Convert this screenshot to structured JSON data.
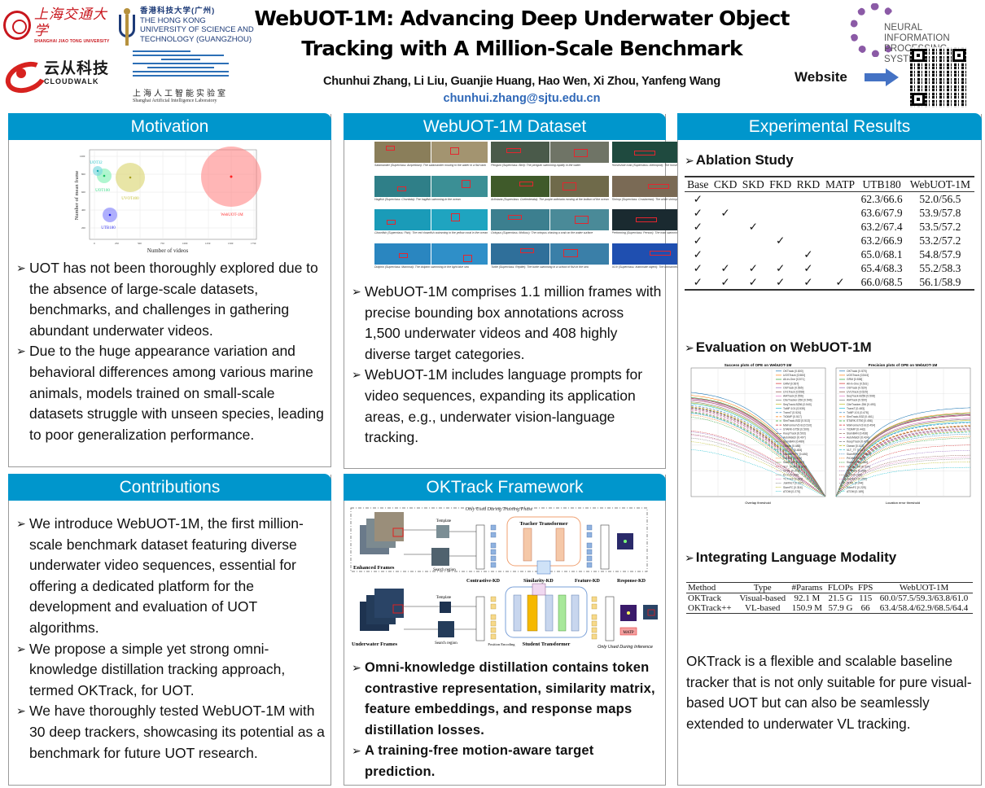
{
  "header": {
    "title_line1": "WebUOT-1M: Advancing Deep Underwater Object",
    "title_line2": "Tracking with A Million-Scale Benchmark",
    "authors": "Chunhui Zhang, Li Liu, Guanjie Huang, Hao Wen, Xi Zhou, Yanfeng Wang",
    "email": "chunhui.zhang@sjtu.edu.cn",
    "website_label": "Website",
    "logos": {
      "sjtu_cn": "上海交通大学",
      "sjtu_en": "SHANGHAI JIAO TONG UNIVERSITY",
      "hkust_cn": "香港科技大学(广州)",
      "hkust_en_1": "THE HONG KONG",
      "hkust_en_2": "UNIVERSITY OF SCIENCE AND",
      "hkust_en_3": "TECHNOLOGY (GUANGZHOU)",
      "cloudwalk_cn": "云从科技",
      "cloudwalk_en": "CLOUDWALK",
      "shlab_cn": "上海人工智能实验室",
      "shlab_en": "Shanghai Artificial Intelligence Laboratory",
      "neurips_1": "NEURAL INFORMATION",
      "neurips_2": "PROCESSING SYSTEMS"
    },
    "icons": {
      "arrow": "arrow-right-icon",
      "qr": "qr-code-icon"
    },
    "colors": {
      "arrow": "#4472c4",
      "email": "#2f68b8"
    }
  },
  "theme": {
    "panel_header_bg": "#0096cc",
    "panel_header_text": "#ffffff",
    "panel_border": "#9a9a9a"
  },
  "motivation": {
    "heading": "Motivation",
    "bullets": [
      "UOT has not been thoroughly explored due to the absence of large-scale datasets, benchmarks, and challenges in gathering abundant underwater videos.",
      "Due to the huge appearance variation and behavioral differences among various marine animals, models trained on small-scale datasets struggle with unseen species, leading to poor generalization performance."
    ]
  },
  "contributions": {
    "heading": "Contributions",
    "bullets": [
      "We introduce WebUOT-1M, the first million-scale benchmark dataset featuring diverse underwater video sequences, essential for offering a dedicated platform for the development and evaluation of UOT algorithms.",
      "We propose a simple yet strong omni-knowledge distillation tracking approach, termed OKTrack, for UOT.",
      "We have thoroughly tested WebUOT-1M with 30 deep trackers, showcasing its potential as a benchmark for future UOT research."
    ]
  },
  "dataset": {
    "heading": "WebUOT-1M Dataset",
    "samples": [
      {
        "caption": "Salamander (Superclass: Amphibian): The salamander moving in the water in a fish tank",
        "frames": [
          "#0001",
          "#2024"
        ],
        "tone": [
          "#8a7e5a",
          "#a39470"
        ]
      },
      {
        "caption": "Penguin (Superclass: Bird): The penguin swimming rapidly in the water",
        "frames": [
          "#0001",
          "#0176"
        ],
        "tone": [
          "#4a5a4a",
          "#6f7466"
        ]
      },
      {
        "caption": "Horseshoe crab (Superclass: Arthropod): The horseshoe crab moving in the water",
        "frames": [
          "#0080",
          "#0105"
        ],
        "tone": [
          "#1f4a3f",
          "#24564a"
        ]
      },
      {
        "caption": "Hagfish (Superclass: Chordata): The hagfish swimming in the ocean",
        "frames": [
          "#0001",
          "#0105"
        ],
        "tone": [
          "#2f7f88",
          "#3b8f95"
        ]
      },
      {
        "caption": "Actiniaria (Superclass: Coelenterata): The purple actiniaria moving at the bottom of the ocean",
        "frames": [
          "#0001",
          "#1120"
        ],
        "tone": [
          "#3f5a2a",
          "#6f6a4a"
        ]
      },
      {
        "caption": "Shrimp (Superclass: Crustacean): The white shrimp moving in the fish tank",
        "frames": [
          "#0001",
          "#0012"
        ],
        "tone": [
          "#7a6a55",
          "#8a7a65"
        ]
      },
      {
        "caption": "Clownfish (Superclass: Fish): The red clownfish swimming in the yellow coral in the ocean",
        "frames": [
          "#0121",
          "#0096"
        ],
        "tone": [
          "#1a9bb8",
          "#1fa4c0"
        ]
      },
      {
        "caption": "Octopus (Superclass: Mollusc): The octopus chasing a crab on the water surface",
        "frames": [
          "#0035",
          "#0149"
        ],
        "tone": [
          "#3c7f8f",
          "#4a8a98"
        ]
      },
      {
        "caption": "Performing (Superclass: Person): The man swimming in the water in a white and black mermaid costume",
        "frames": [
          "#0001",
          "#0353"
        ],
        "tone": [
          "#1a2a30",
          "#2a3a2a"
        ]
      },
      {
        "caption": "Dolphin (Superclass: Mammal): The dolphin swimming in the light blue sea",
        "frames": [
          "#0500",
          "#0611"
        ],
        "tone": [
          "#2a86c0",
          "#2f8fc8"
        ]
      },
      {
        "caption": "Turtle (Superclass: Reptile): The turtle swimming in a school of fish in the sea",
        "frames": [
          "#0001",
          "#0052"
        ],
        "tone": [
          "#2f6f9a",
          "#3a7fa8"
        ]
      },
      {
        "caption": "UUV (Superclass: Inanimate object): The unmanned underwater vehicle leaving the platform in the ocean",
        "frames": [
          "#0001",
          "#0116"
        ],
        "tone": [
          "#1f4fb0",
          "#2a5cc0"
        ]
      }
    ],
    "bullets": [
      "WebUOT-1M comprises 1.1 million frames with precise bounding box annotations across 1,500 underwater videos and 408 highly diverse target categories.",
      "WebUOT-1M includes language prompts for video sequences, expanding its application areas, e.g., underwater vision-language tracking."
    ]
  },
  "framework": {
    "heading": "OKTrack Framework",
    "diagram": {
      "training_only": "Only Used During Training Phase",
      "inference_only": "Only Used During Inference",
      "enhanced_frames": "Enhanced Frames",
      "underwater_frames": "Underwater Frames",
      "template": "Template",
      "search_region": "Search region",
      "projection_layer": "Projection Layer",
      "teacher": "Teacher Transformer",
      "student": "Student Transformer",
      "mha": "Multi-Head Attention",
      "layer_norm": "LayerNorm",
      "add_norm": "Add & Norm",
      "ffn": "FFN",
      "tracking_head": "Tracking Head",
      "position_encoding": "Position Encoding",
      "contrastive_kd": "Contrastive-KD",
      "similarity_kd": "Similarity-KD",
      "feature_kd": "Feature-KD",
      "response_kd": "Response-KD",
      "matp": "MATP",
      "time": "Time",
      "frame_first": "#1",
      "frame_last": "#N"
    },
    "bullets": [
      "Omni-knowledge distillation contains token contrastive  representation, similarity matrix, feature embeddings, and response maps distillation losses.",
      "A training-free motion-aware target prediction."
    ]
  },
  "results": {
    "heading": "Experimental Results",
    "ablation": {
      "heading": "Ablation Study",
      "columns": [
        "Base",
        "CKD",
        "SKD",
        "FKD",
        "RKD",
        "MATP",
        "UTB180",
        "WebUOT-1M"
      ],
      "check": "✓",
      "rows": [
        [
          true,
          false,
          false,
          false,
          false,
          false,
          "62.3/66.6",
          "52.0/56.5"
        ],
        [
          true,
          true,
          false,
          false,
          false,
          false,
          "63.6/67.9",
          "53.9/57.8"
        ],
        [
          true,
          false,
          true,
          false,
          false,
          false,
          "63.2/67.4",
          "53.5/57.2"
        ],
        [
          true,
          false,
          false,
          true,
          false,
          false,
          "63.2/66.9",
          "53.2/57.2"
        ],
        [
          true,
          false,
          false,
          false,
          true,
          false,
          "65.0/68.1",
          "54.8/57.9"
        ],
        [
          true,
          true,
          true,
          true,
          true,
          false,
          "65.4/68.3",
          "55.2/58.3"
        ],
        [
          true,
          true,
          true,
          true,
          true,
          true,
          "66.0/68.5",
          "56.1/58.9"
        ]
      ]
    },
    "evaluation": {
      "heading": "Evaluation on WebUOT-1M",
      "success_plot": {
        "title": "Success plots of OPE on WebUOT-1M",
        "xlabel": "Overlap threshold",
        "ylabel": "Success rate",
        "legend": [
          "OKTrack [0.600]",
          "UOSTrack [0.583]",
          "All-in-One [0.571]",
          "GRM [0.567]",
          "OSTrack [0.565]",
          "UVLTrack [0.558]",
          "AiATrack [0.556]",
          "CiteTracker-256 [0.546]",
          "SeqTrack-B256 [0.540]",
          "ToMP-101 [0.535]",
          "TransT [0.524]",
          "TrDiMP [0.517]",
          "SimTrack-B32 [0.513]",
          "MixFormerV2-B [0.510]",
          "STARK-ST50 [0.509]",
          "KeepTrack [0.503]",
          "AutoMatch [0.497]",
          "SiamBAN [0.489]",
          "Ocean [0.485]",
          "VLT_TT [0.483]",
          "SiamRPN++ [0.480]",
          "PrDiMP [0.470]",
          "SiamCAR [0.457]",
          "VLT_SCAR [0.378]",
          "VITAL [0.372]",
          "ECO [0.358]",
          "TCTrack [0.353]",
          "JointNLT [0.337]",
          "SiamFC [0.316]",
          "ATOM [0.270]"
        ]
      },
      "precision_plot": {
        "title": "Precision plots of OPE on WebUOT-1M",
        "xlabel": "Location error threshold",
        "ylabel": "Precision",
        "legend": [
          "OKTrack [0.575]",
          "UOSTrack [0.543]",
          "GRM [0.538]",
          "All-in-One [0.531]",
          "OSTrack [0.529]",
          "UVLTrack [0.525]",
          "SeqTrack-B256 [0.508]",
          "AiATrack [0.500]",
          "CiteTracker-256 [0.493]",
          "TransT [0.483]",
          "ToMP-101 [0.478]",
          "SimTrack-B32 [0.461]",
          "STARK-ST50 [0.456]",
          "MixFormerV2-B [0.454]",
          "TrDiMP [0.443]",
          "SiamBAN [0.438]",
          "AutoMatch [0.434]",
          "KeepTrack [0.428]",
          "Ocean [0.422]",
          "VLT_TT [0.417]",
          "SiamRPN++ [0.405]",
          "PrDiMP [0.390]",
          "SiamCAR [0.380]",
          "VLT_SCAR [0.334]",
          "TCTrack [0.299]",
          "ECO [0.268]",
          "JointNLT [0.255]",
          "VITAL [0.244]",
          "SiamFC [0.225]",
          "ATOM [0.189]"
        ]
      }
    },
    "language": {
      "heading": "Integrating Language Modality",
      "columns": [
        "Method",
        "Type",
        "#Params",
        "FLOPs",
        "FPS",
        "WebUOT-1M"
      ],
      "rows": [
        [
          "OKTrack",
          "Visual-based",
          "92.1 M",
          "21.5 G",
          "115",
          "60.0/57.5/59.3/63.8/61.0"
        ],
        [
          "OKTrack++",
          "VL-based",
          "150.9 M",
          "57.9 G",
          "66",
          "63.4/58.4/62.9/68.5/64.4"
        ]
      ]
    },
    "closing_text": "OKTrack is a flexible and scalable baseline tracker that is not only suitable for pure visual-based UOT but can also be seamlessly extended to underwater VL tracking."
  },
  "chart_data": {
    "type": "scatter",
    "title": "",
    "xlabel": "Number of videos",
    "ylabel": "Number of mean frame",
    "xlim": [
      -100,
      1900
    ],
    "ylim": [
      0,
      1150
    ],
    "x_ticks": [
      0,
      250,
      500,
      750,
      1000,
      1250,
      1500,
      1750
    ],
    "y_ticks": [
      200,
      400,
      600,
      800,
      1000
    ],
    "grid": true,
    "legend": "none (inline labels)",
    "series": [
      {
        "name": "UOT32",
        "x": 32,
        "y": 760,
        "bubble_radius": 14,
        "color": "#22c4c8"
      },
      {
        "name": "UOT100",
        "x": 104,
        "y": 700,
        "bubble_radius": 22,
        "color": "#3ee08a"
      },
      {
        "name": "UVOT400",
        "x": 400,
        "y": 690,
        "bubble_radius": 32,
        "color": "#c8c43c"
      },
      {
        "name": "UTB180",
        "x": 180,
        "y": 340,
        "bubble_radius": 18,
        "color": "#2b2bf0"
      },
      {
        "name": "WebUOT-1M",
        "x": 1500,
        "y": 735,
        "bubble_radius": 68,
        "color": "#ff3a3a"
      }
    ]
  }
}
